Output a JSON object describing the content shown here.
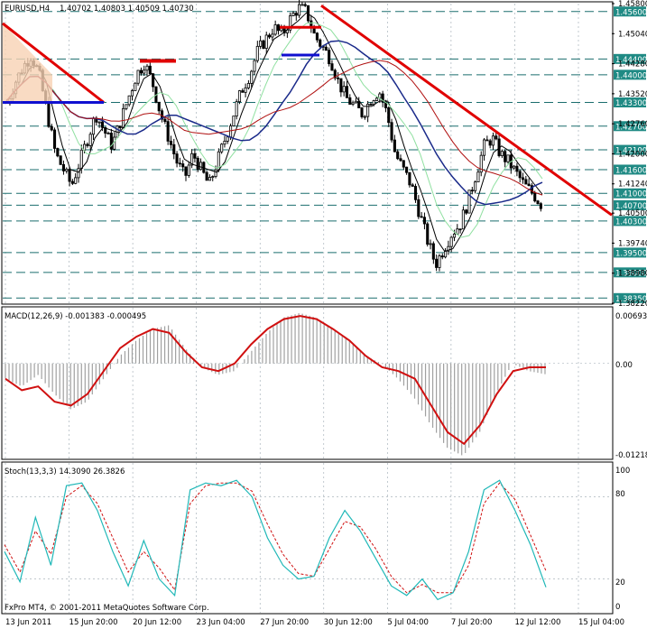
{
  "colors": {
    "background": "#ffffff",
    "grid": "#9aa7b0",
    "level_line": "#1b6e6e",
    "label_bg": "#1f8a84",
    "candle": "#000000",
    "trend_red": "#e00000",
    "support_blue": "#1010d0",
    "ma_fast": "#000000",
    "ma_slow": "#1a2a8a",
    "ma_green": "#8fe0a0",
    "ma_red": "#b01010",
    "ma_purple": "#7a2a6a",
    "macd_hist": "#a0a0a0",
    "macd_signal": "#d01010",
    "stoch_main": "#20b8b8",
    "stoch_signal": "#d01010",
    "channel_fill": "#f8d2b4"
  },
  "main_panel": {
    "title": "EURUSD,H4",
    "ohlc": "1.40702 1.40803 1.40509 1.40730"
  },
  "macd_panel": {
    "title": "MACD(12,26,9) -0.001383 -0.000495",
    "tick_labels": [
      "0.00693",
      "0.00",
      "-0.01218"
    ]
  },
  "stoch_panel": {
    "title": "Stoch(13,3,3) 14.3090 26.3826",
    "tick_labels": [
      "100",
      "80",
      "20",
      "0"
    ]
  },
  "footer": {
    "copyright": "FxPro MT4, © 2001-2011 MetaQuotes Software Corp."
  },
  "chart_data": {
    "type": "candlestick",
    "symbol": "EURUSD",
    "timeframe": "H4",
    "ylim": [
      1.3822,
      1.458
    ],
    "price_axis_ticks": [
      "1.45800",
      "1.45040",
      "1.44280",
      "1.43520",
      "1.42760",
      "1.42000",
      "1.41240",
      "1.40500",
      "1.39740",
      "1.38980",
      "1.38220"
    ],
    "price_levels": [
      {
        "value": 1.456,
        "label": "1.45600"
      },
      {
        "value": 1.444,
        "label": "1.44400"
      },
      {
        "value": 1.44,
        "label": "1.44000"
      },
      {
        "value": 1.433,
        "label": "1.43300"
      },
      {
        "value": 1.427,
        "label": "1.42700"
      },
      {
        "value": 1.421,
        "label": "1.42100"
      },
      {
        "value": 1.416,
        "label": "1.41600"
      },
      {
        "value": 1.41,
        "label": "1.41000"
      },
      {
        "value": 1.407,
        "label": "1.40700"
      },
      {
        "value": 1.403,
        "label": "1.40300"
      },
      {
        "value": 1.395,
        "label": "1.39500"
      },
      {
        "value": 1.39,
        "label": "1.39000"
      },
      {
        "value": 1.3835,
        "label": "1.38350"
      }
    ],
    "time_axis_labels": [
      "13 Jun 2011",
      "15 Jun 20:00",
      "20 Jun 12:00",
      "23 Jun 04:00",
      "27 Jun 20:00",
      "30 Jun 12:00",
      "5 Jul 04:00",
      "7 Jul 20:00",
      "12 Jul 12:00",
      "15 Jul 04:00"
    ],
    "close_path": [
      1.433,
      1.438,
      1.442,
      1.445,
      1.44,
      1.43,
      1.42,
      1.416,
      1.412,
      1.418,
      1.424,
      1.43,
      1.426,
      1.422,
      1.428,
      1.434,
      1.44,
      1.443,
      1.438,
      1.43,
      1.424,
      1.418,
      1.414,
      1.42,
      1.416,
      1.412,
      1.418,
      1.424,
      1.43,
      1.436,
      1.44,
      1.446,
      1.449,
      1.452,
      1.45,
      1.454,
      1.457,
      1.456,
      1.45,
      1.447,
      1.444,
      1.438,
      1.434,
      1.432,
      1.43,
      1.434,
      1.436,
      1.43,
      1.42,
      1.416,
      1.412,
      1.405,
      1.398,
      1.392,
      1.396,
      1.4,
      1.402,
      1.408,
      1.415,
      1.422,
      1.424,
      1.42,
      1.418,
      1.415,
      1.412,
      1.41,
      1.4073
    ],
    "macd_hist": [
      -0.002,
      -0.003,
      -0.0015,
      -0.004,
      -0.006,
      -0.005,
      -0.002,
      0.001,
      0.003,
      0.0045,
      0.005,
      0.002,
      -0.0005,
      -0.0015,
      -0.001,
      0.0015,
      0.004,
      0.006,
      0.0066,
      0.006,
      0.0045,
      0.003,
      0.001,
      0.0,
      -0.002,
      -0.0045,
      -0.008,
      -0.011,
      -0.0121,
      -0.009,
      -0.004,
      0.0,
      -0.001,
      -0.0014
    ],
    "macd_signal": [
      -0.002,
      -0.0035,
      -0.003,
      -0.005,
      -0.0055,
      -0.004,
      -0.001,
      0.002,
      0.0035,
      0.0045,
      0.004,
      0.0015,
      -0.0005,
      -0.001,
      0.0,
      0.0025,
      0.0045,
      0.0058,
      0.0062,
      0.0058,
      0.0045,
      0.003,
      0.001,
      -0.0005,
      -0.001,
      -0.002,
      -0.0055,
      -0.009,
      -0.0105,
      -0.008,
      -0.004,
      -0.001,
      -0.0005,
      -0.0005
    ],
    "stoch_main": [
      40,
      18,
      65,
      30,
      88,
      90,
      70,
      40,
      15,
      48,
      20,
      8,
      85,
      90,
      88,
      92,
      80,
      50,
      30,
      20,
      22,
      50,
      70,
      55,
      35,
      15,
      8,
      20,
      5,
      10,
      40,
      85,
      92,
      70,
      45,
      14
    ],
    "stoch_signal": [
      45,
      25,
      55,
      38,
      80,
      88,
      75,
      50,
      25,
      40,
      28,
      12,
      75,
      88,
      90,
      90,
      84,
      60,
      38,
      24,
      22,
      42,
      62,
      58,
      42,
      22,
      10,
      16,
      10,
      10,
      30,
      75,
      90,
      78,
      52,
      26
    ]
  }
}
